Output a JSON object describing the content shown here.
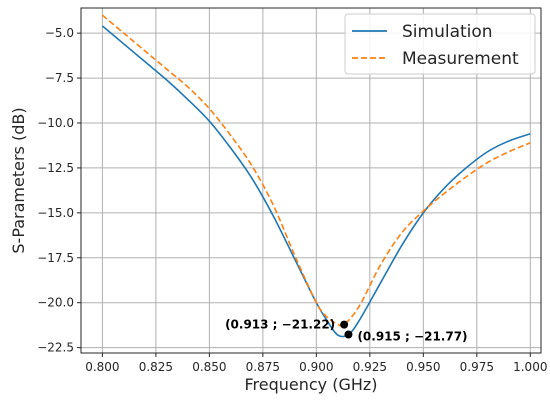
{
  "chart_data": {
    "type": "line",
    "title": "",
    "xlabel": "Frequency (GHz)",
    "ylabel": "S-Parameters (dB)",
    "xlim": [
      0.79,
      1.005
    ],
    "ylim": [
      -22.8,
      -3.6
    ],
    "grid": true,
    "legend": "top-right",
    "x_ticks": [
      0.8,
      0.825,
      0.85,
      0.875,
      0.9,
      0.925,
      0.95,
      0.975,
      1.0
    ],
    "x_tick_labels": [
      "0.800",
      "0.825",
      "0.850",
      "0.875",
      "0.900",
      "0.925",
      "0.950",
      "0.975",
      "1.000"
    ],
    "y_ticks": [
      -5.0,
      -7.5,
      -10.0,
      -12.5,
      -15.0,
      -17.5,
      -20.0,
      -22.5
    ],
    "y_tick_labels": [
      "−5.0",
      "−7.5",
      "−10.0",
      "−12.5",
      "−15.0",
      "−17.5",
      "−20.0",
      "−22.5"
    ],
    "series": [
      {
        "name": "Simulation",
        "color": "#1f77b4",
        "style": "solid",
        "x": [
          0.8,
          0.81,
          0.82,
          0.83,
          0.84,
          0.85,
          0.86,
          0.87,
          0.88,
          0.89,
          0.9,
          0.905,
          0.91,
          0.915,
          0.92,
          0.93,
          0.94,
          0.95,
          0.96,
          0.97,
          0.98,
          0.99,
          1.0
        ],
        "y": [
          -4.6,
          -5.6,
          -6.6,
          -7.6,
          -8.7,
          -9.9,
          -11.4,
          -13.1,
          -15.2,
          -17.6,
          -20.0,
          -21.0,
          -21.8,
          -21.77,
          -21.0,
          -18.9,
          -16.8,
          -15.0,
          -13.6,
          -12.5,
          -11.6,
          -11.0,
          -10.6
        ]
      },
      {
        "name": "Measurement",
        "color": "#ff7f0e",
        "style": "dashed",
        "x": [
          0.8,
          0.81,
          0.82,
          0.83,
          0.84,
          0.85,
          0.86,
          0.87,
          0.88,
          0.89,
          0.9,
          0.905,
          0.91,
          0.913,
          0.92,
          0.93,
          0.94,
          0.95,
          0.96,
          0.97,
          0.98,
          0.99,
          1.0
        ],
        "y": [
          -4.0,
          -5.0,
          -6.0,
          -7.0,
          -8.0,
          -9.2,
          -10.7,
          -12.4,
          -14.6,
          -17.4,
          -20.0,
          -20.8,
          -21.2,
          -21.22,
          -20.2,
          -17.9,
          -16.1,
          -14.9,
          -13.9,
          -13.0,
          -12.2,
          -11.6,
          -11.1
        ]
      }
    ],
    "annotations": [
      {
        "label": "(0.913 ; −21.22)",
        "x": 0.913,
        "y": -21.22,
        "side": "left"
      },
      {
        "label": "(0.915 ; −21.77)",
        "x": 0.915,
        "y": -21.77,
        "side": "right"
      }
    ]
  }
}
